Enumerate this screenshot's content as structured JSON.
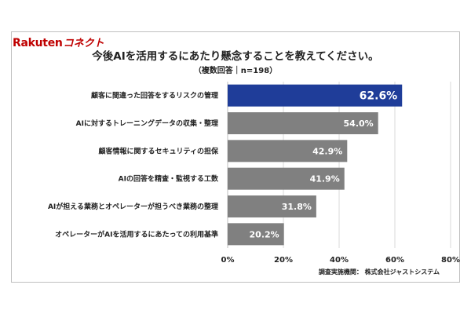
{
  "logo": {
    "brand": "Rakuten",
    "product": "コネクト"
  },
  "chart_data": {
    "type": "bar",
    "orientation": "horizontal",
    "title": "今後AIを活用するにあたり懸念することを教えてください。",
    "subtitle": "（複数回答｜n=198）",
    "categories": [
      "顧客に間違った回答をするリスクの管理",
      "AIに対するトレーニングデータの収集・整理",
      "顧客情報に関するセキュリティの担保",
      "AIの回答を精査・監視する工数",
      "AIが担える業務とオペレーターが担うべき業務の整理",
      "オペレーターがAIを活用するにあたっての利用基準"
    ],
    "values": [
      62.6,
      54.0,
      42.9,
      41.9,
      31.8,
      20.2
    ],
    "value_labels": [
      "62.6%",
      "54.0%",
      "42.9%",
      "41.9%",
      "31.8%",
      "20.2%"
    ],
    "xlim": [
      0,
      80
    ],
    "ticks": [
      0,
      20,
      40,
      60,
      80
    ],
    "tick_labels": [
      "0%",
      "20%",
      "40%",
      "60%",
      "80%"
    ],
    "grid": true,
    "colors": {
      "highlight": "#1f3d99",
      "default": "#808080"
    },
    "source": "調査実施機関： 株式会社ジャストシステム"
  }
}
